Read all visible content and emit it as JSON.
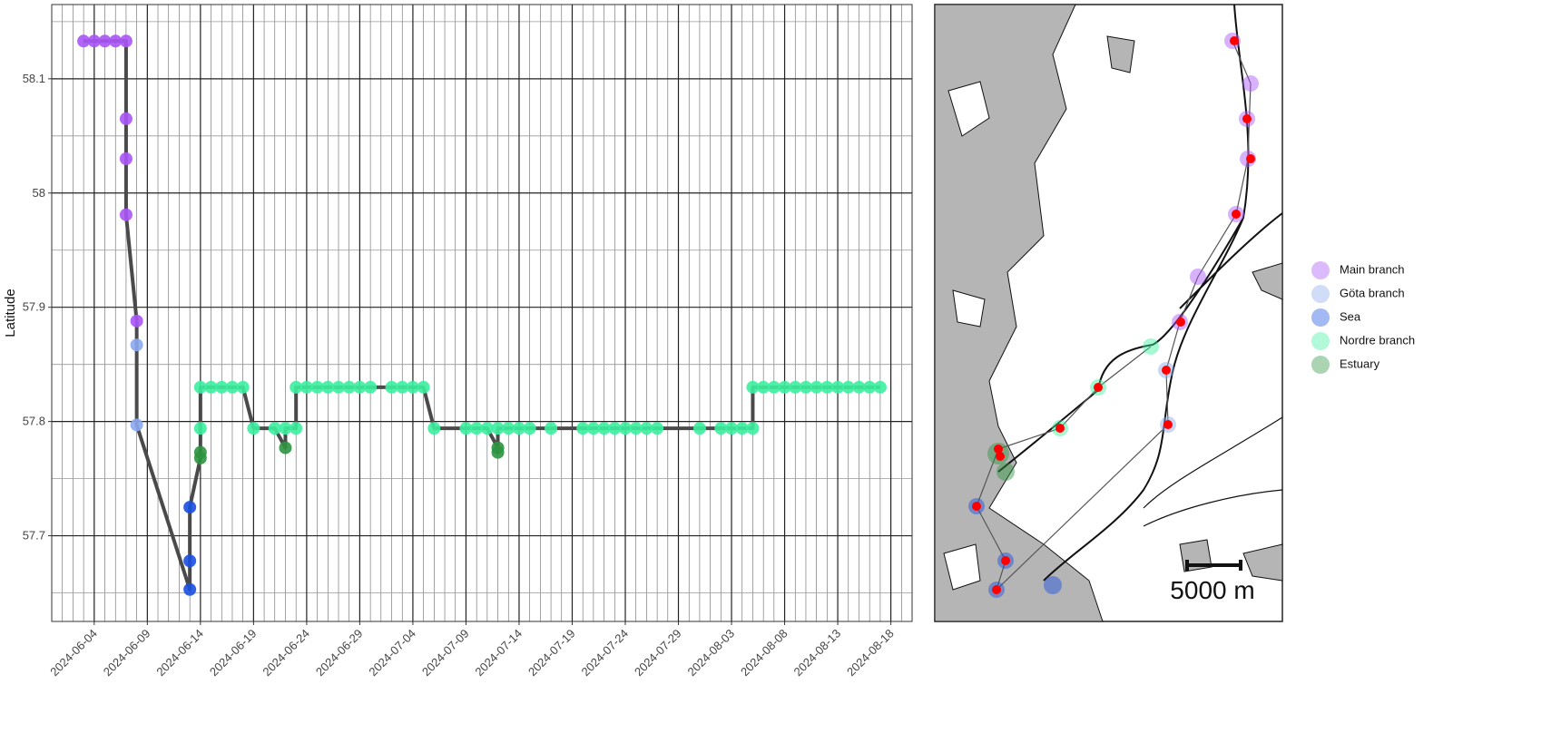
{
  "chart_data": {
    "type": "line",
    "y_label": "Latitude",
    "xlim": [
      "2024-05-31",
      "2024-08-20"
    ],
    "xticks": [
      "2024-06-04",
      "2024-06-09",
      "2024-06-14",
      "2024-06-19",
      "2024-06-24",
      "2024-06-29",
      "2024-07-04",
      "2024-07-09",
      "2024-07-14",
      "2024-07-19",
      "2024-07-24",
      "2024-07-29",
      "2024-08-03",
      "2024-08-08",
      "2024-08-13",
      "2024-08-18"
    ],
    "ylim": [
      57.625,
      58.165
    ],
    "yticks": [
      57.7,
      57.8,
      57.9,
      58.0,
      58.1
    ],
    "grid": true,
    "line_color": "#4a4a4a",
    "series": [
      {
        "name": "Main branch",
        "color": "#a855f7"
      },
      {
        "name": "Göta branch",
        "color": "#8aa8ee"
      },
      {
        "name": "Sea",
        "color": "#1a4fe0"
      },
      {
        "name": "Nordre branch",
        "color": "#3cf0a0"
      },
      {
        "name": "Estuary",
        "color": "#2e9440"
      }
    ],
    "points": {
      "x": [
        "2024-06-03",
        "2024-06-04",
        "2024-06-05",
        "2024-06-06",
        "2024-06-07",
        "2024-06-07",
        "2024-06-07",
        "2024-06-07",
        "2024-06-08",
        "2024-06-08",
        "2024-06-08",
        "2024-06-13",
        "2024-06-13",
        "2024-06-13",
        "2024-06-14",
        "2024-06-14",
        "2024-06-14",
        "2024-06-14",
        "2024-06-15",
        "2024-06-16",
        "2024-06-17",
        "2024-06-18",
        "2024-06-19",
        "2024-06-21",
        "2024-06-22",
        "2024-06-22",
        "2024-06-23",
        "2024-06-23",
        "2024-06-24",
        "2024-06-25",
        "2024-06-26",
        "2024-06-27",
        "2024-06-28",
        "2024-06-29",
        "2024-06-30",
        "2024-07-02",
        "2024-07-03",
        "2024-07-04",
        "2024-07-05",
        "2024-07-06",
        "2024-07-09",
        "2024-07-10",
        "2024-07-11",
        "2024-07-12",
        "2024-07-12",
        "2024-07-12",
        "2024-07-13",
        "2024-07-14",
        "2024-07-15",
        "2024-07-17",
        "2024-07-20",
        "2024-07-21",
        "2024-07-22",
        "2024-07-23",
        "2024-07-24",
        "2024-07-25",
        "2024-07-26",
        "2024-07-27",
        "2024-07-31",
        "2024-08-02",
        "2024-08-03",
        "2024-08-04",
        "2024-08-05",
        "2024-08-05",
        "2024-08-06",
        "2024-08-07",
        "2024-08-08",
        "2024-08-09",
        "2024-08-10",
        "2024-08-11",
        "2024-08-12",
        "2024-08-13",
        "2024-08-14",
        "2024-08-15",
        "2024-08-16",
        "2024-08-17"
      ],
      "values": [
        58.133,
        58.133,
        58.133,
        58.133,
        58.133,
        58.065,
        58.03,
        57.981,
        57.888,
        57.867,
        57.797,
        57.653,
        57.678,
        57.725,
        57.768,
        57.773,
        57.794,
        57.83,
        57.83,
        57.83,
        57.83,
        57.83,
        57.794,
        57.794,
        57.777,
        57.794,
        57.794,
        57.83,
        57.83,
        57.83,
        57.83,
        57.83,
        57.83,
        57.83,
        57.83,
        57.83,
        57.83,
        57.83,
        57.83,
        57.794,
        57.794,
        57.794,
        57.794,
        57.777,
        57.773,
        57.794,
        57.794,
        57.794,
        57.794,
        57.794,
        57.794,
        57.794,
        57.794,
        57.794,
        57.794,
        57.794,
        57.794,
        57.794,
        57.794,
        57.794,
        57.794,
        57.794,
        57.794,
        57.83,
        57.83,
        57.83,
        57.83,
        57.83,
        57.83,
        57.83,
        57.83,
        57.83,
        57.83,
        57.83,
        57.83,
        57.83
      ],
      "zone": [
        "Main branch",
        "Main branch",
        "Main branch",
        "Main branch",
        "Main branch",
        "Main branch",
        "Main branch",
        "Main branch",
        "Main branch",
        "Göta branch",
        "Göta branch",
        "Sea",
        "Sea",
        "Sea",
        "Estuary",
        "Estuary",
        "Nordre branch",
        "Nordre branch",
        "Nordre branch",
        "Nordre branch",
        "Nordre branch",
        "Nordre branch",
        "Nordre branch",
        "Nordre branch",
        "Estuary",
        "Nordre branch",
        "Nordre branch",
        "Nordre branch",
        "Nordre branch",
        "Nordre branch",
        "Nordre branch",
        "Nordre branch",
        "Nordre branch",
        "Nordre branch",
        "Nordre branch",
        "Nordre branch",
        "Nordre branch",
        "Nordre branch",
        "Nordre branch",
        "Nordre branch",
        "Nordre branch",
        "Nordre branch",
        "Nordre branch",
        "Estuary",
        "Estuary",
        "Nordre branch",
        "Nordre branch",
        "Nordre branch",
        "Nordre branch",
        "Nordre branch",
        "Nordre branch",
        "Nordre branch",
        "Nordre branch",
        "Nordre branch",
        "Nordre branch",
        "Nordre branch",
        "Nordre branch",
        "Nordre branch",
        "Nordre branch",
        "Nordre branch",
        "Nordre branch",
        "Nordre branch",
        "Nordre branch",
        "Nordre branch",
        "Nordre branch",
        "Nordre branch",
        "Nordre branch",
        "Nordre branch",
        "Nordre branch",
        "Nordre branch",
        "Nordre branch",
        "Nordre branch",
        "Nordre branch",
        "Nordre branch",
        "Nordre branch",
        "Nordre branch"
      ]
    }
  },
  "map": {
    "scale_label": "5000 m"
  }
}
